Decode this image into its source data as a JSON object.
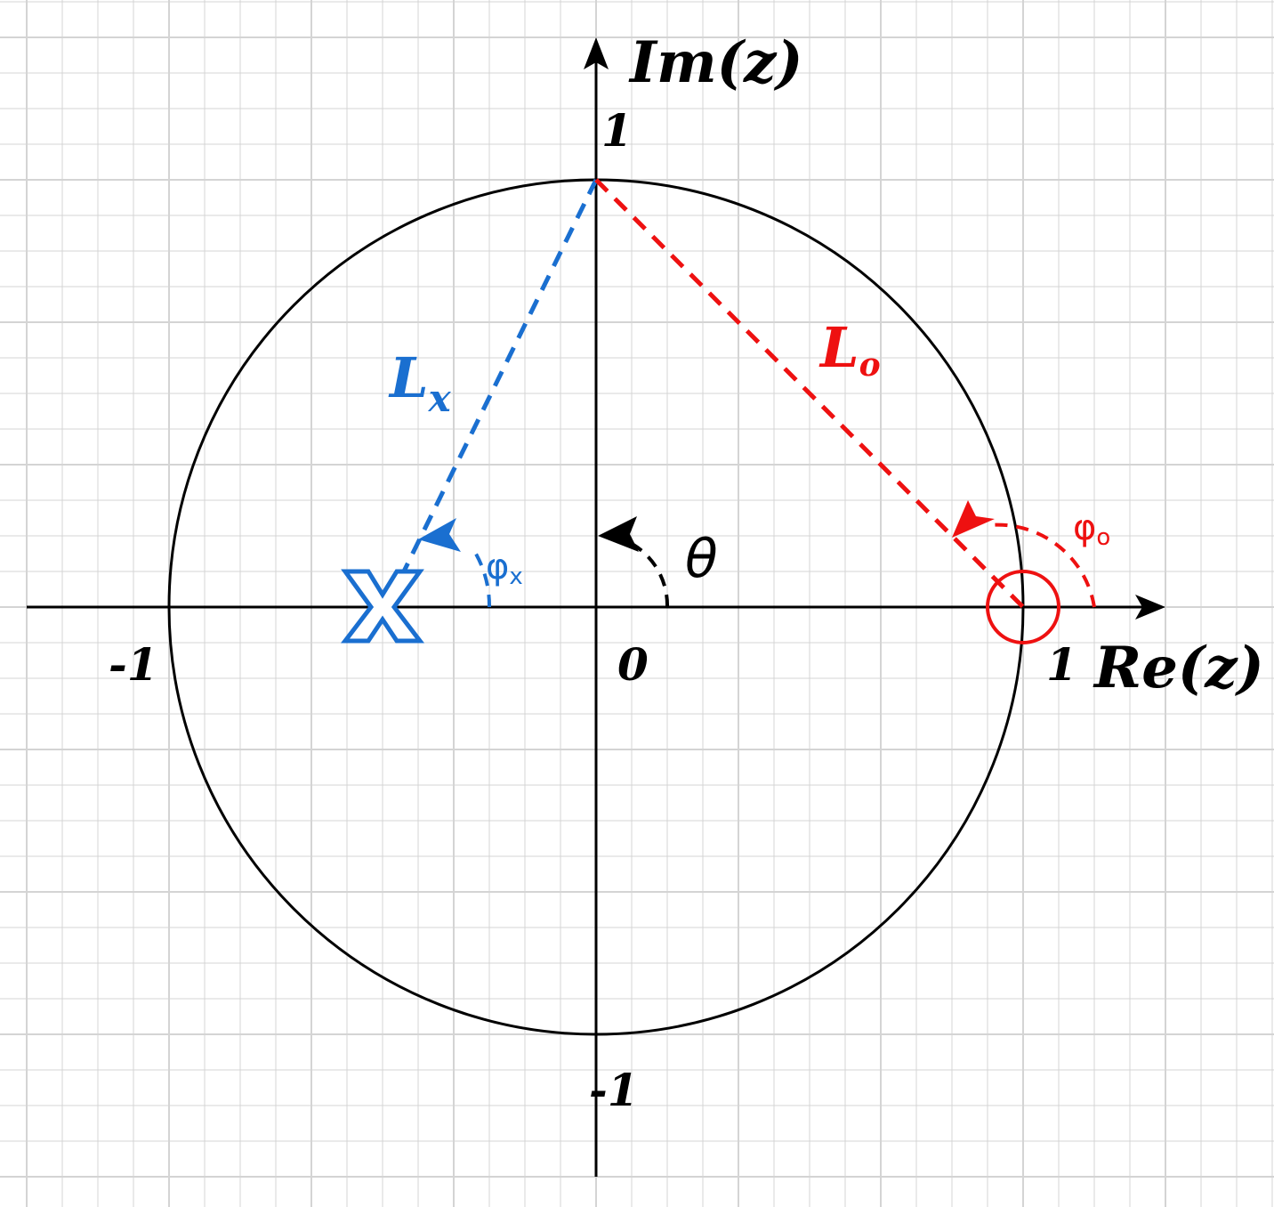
{
  "axes": {
    "im_label": "Im(z)",
    "re_label": "Re(z)",
    "origin_label": "0"
  },
  "ticks": {
    "im_pos": "1",
    "im_neg": "-1",
    "re_pos": "1",
    "re_neg": "-1"
  },
  "angles": {
    "theta": "θ",
    "phi_x": "φ",
    "phi_x_sub": "x",
    "phi_o": "φ",
    "phi_o_sub": "o"
  },
  "vectors": {
    "lx_main": "L",
    "lx_sub": "x",
    "lo_main": "L",
    "lo_sub": "o"
  },
  "colors": {
    "axis": "#000000",
    "circle": "#000000",
    "grid": "#d4d4d4",
    "pole": "#1a6fd0",
    "zero": "#ee1111"
  },
  "markers": {
    "pole_icon": "cross-pole-icon",
    "zero_icon": "circle-zero-icon"
  }
}
